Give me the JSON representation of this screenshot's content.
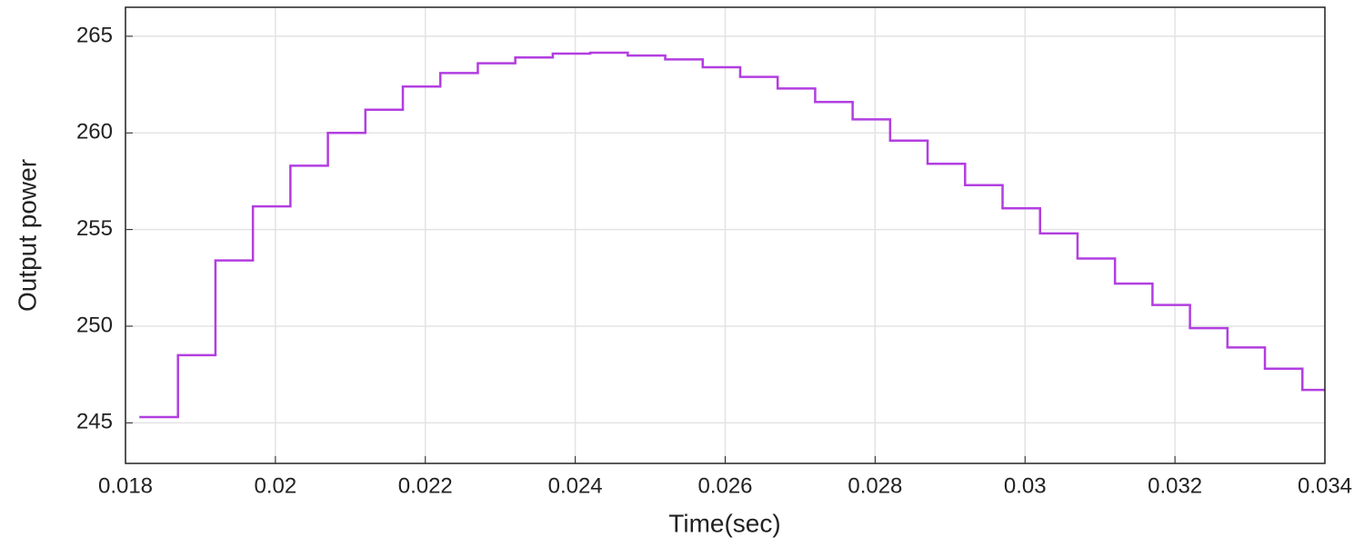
{
  "chart_data": {
    "type": "line",
    "step": "post",
    "x_label": "Time(sec)",
    "y_label": "Output power",
    "x": [
      0.0182,
      0.0187,
      0.0192,
      0.0197,
      0.0202,
      0.0207,
      0.0212,
      0.0217,
      0.0222,
      0.0227,
      0.0232,
      0.0237,
      0.0242,
      0.0247,
      0.0252,
      0.0257,
      0.0262,
      0.0267,
      0.0272,
      0.0277,
      0.0282,
      0.0287,
      0.0292,
      0.0297,
      0.0302,
      0.0307,
      0.0312,
      0.0317,
      0.0322,
      0.0327,
      0.0332,
      0.0337
    ],
    "values": [
      245.3,
      248.5,
      253.4,
      256.2,
      258.3,
      260.0,
      261.2,
      262.4,
      263.1,
      263.6,
      263.9,
      264.1,
      264.15,
      264.0,
      263.8,
      263.4,
      262.9,
      262.3,
      261.6,
      260.7,
      259.6,
      258.4,
      257.3,
      256.1,
      254.8,
      253.5,
      252.2,
      251.1,
      249.9,
      248.9,
      247.8,
      246.7
    ],
    "color": "#b23ee0",
    "xlim": [
      0.018,
      0.034
    ],
    "xticks": [
      0.018,
      0.02,
      0.022,
      0.024,
      0.026,
      0.028,
      0.03,
      0.032,
      0.034
    ],
    "ylim": [
      242.9,
      266.5
    ],
    "yticks": [
      245,
      250,
      255,
      260,
      265
    ],
    "grid": true
  }
}
